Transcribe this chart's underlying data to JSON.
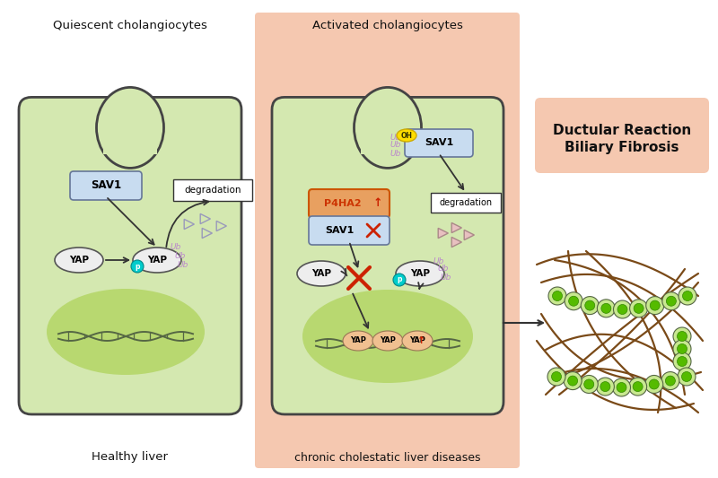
{
  "bg_color": "#ffffff",
  "right_panel_bg": "#f5c8b0",
  "cell_fill": "#d4e8b0",
  "cell_edge": "#444444",
  "nucleus_fill": "#b8d870",
  "sav1_fill": "#c8dcf0",
  "sav1_edge": "#667799",
  "yap_fill": "#eeeeee",
  "yap_edge": "#555555",
  "p_fill": "#00cccc",
  "ub_color": "#bb88cc",
  "p4ha2_fill": "#e8a060",
  "p4ha2_edge": "#cc5500",
  "p4ha2_text": "#cc3300",
  "dna_color": "#556644",
  "arrow_color": "#333333",
  "red_color": "#cc2200",
  "tri_empty_edge": "#9999bb",
  "tri_filled_edge": "#aa8888",
  "tri_filled_fill": "#e8c0c0",
  "oh_fill": "#ffdd00",
  "oh_edge": "#ccaa00",
  "fibrosis_bg": "#f5c8b0",
  "fiber_color": "#7a4a18",
  "cell_outer": "#c8e890",
  "cell_inner": "#55bb00",
  "cell_outer_edge": "#556644",
  "cell_inner_edge": "#338800",
  "yap_nuc_fill": "#f0c090",
  "yap_nuc_edge": "#997755",
  "title_left": "Quiescent cholangiocytes",
  "title_right": "Activated cholangiocytes",
  "label_left": "Healthy liver",
  "label_right": "chronic cholestatic liver diseases",
  "fibrosis_line1": "Ductular Reaction",
  "fibrosis_line2": "Biliary Fibrosis"
}
